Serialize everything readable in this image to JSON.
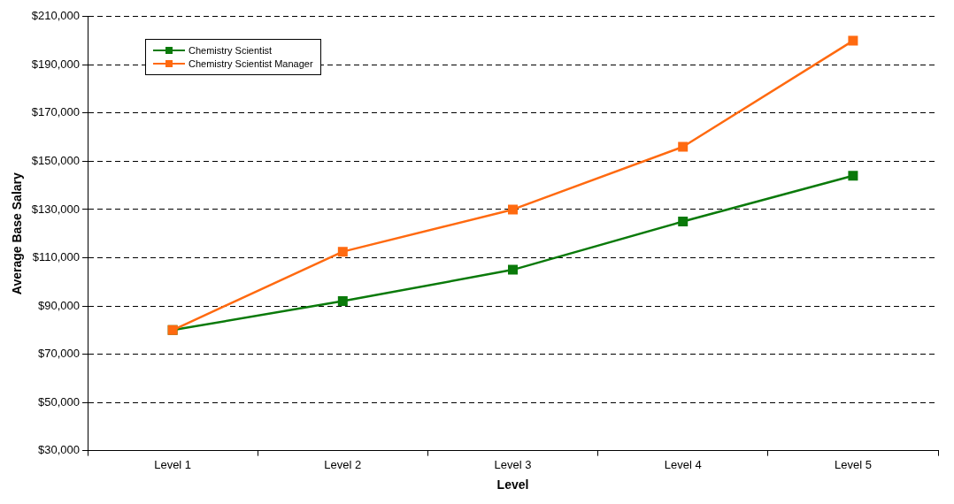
{
  "chart_data": {
    "type": "line",
    "xlabel": "Level",
    "ylabel": "Average Base Salary",
    "categories": [
      "Level 1",
      "Level 2",
      "Level 3",
      "Level 4",
      "Level 5"
    ],
    "series": [
      {
        "name": "Chemistry Scientist",
        "color": "#0a7a0a",
        "values": [
          80000,
          92000,
          105000,
          125000,
          144000
        ]
      },
      {
        "name": "Chemistry Scientist Manager",
        "color": "#ff6a10",
        "values": [
          80000,
          112500,
          130000,
          156000,
          200000
        ]
      }
    ],
    "ylim": [
      30000,
      210000
    ],
    "yticks": [
      {
        "value": 30000,
        "label": "$30,000"
      },
      {
        "value": 50000,
        "label": "$50,000"
      },
      {
        "value": 70000,
        "label": "$70,000"
      },
      {
        "value": 90000,
        "label": "$90,000"
      },
      {
        "value": 110000,
        "label": "$110,000"
      },
      {
        "value": 130000,
        "label": "$130,000"
      },
      {
        "value": 150000,
        "label": "$150,000"
      },
      {
        "value": 170000,
        "label": "$170,000"
      },
      {
        "value": 190000,
        "label": "$190,000"
      },
      {
        "value": 210000,
        "label": "$210,000"
      }
    ],
    "grid": "y",
    "legend": "top left",
    "marker": "square",
    "line_style": "solid"
  }
}
